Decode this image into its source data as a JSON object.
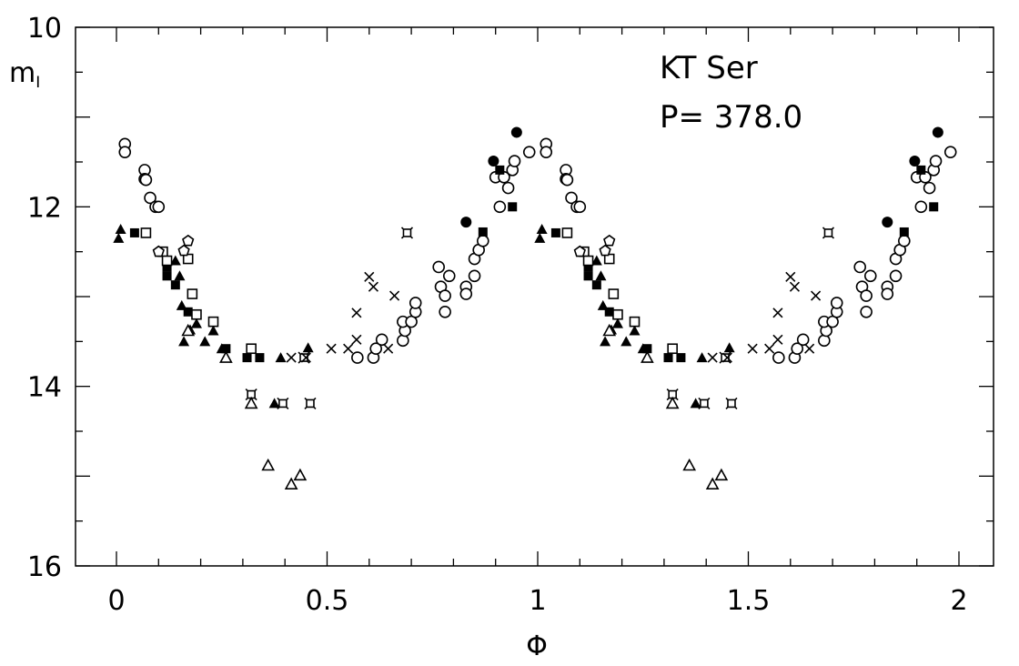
{
  "chart_data": {
    "type": "scatter",
    "title": "",
    "annotations": {
      "star": "KT Ser",
      "period": "P= 378.0"
    },
    "xlabel": "Φ",
    "ylabel": "m",
    "ylabel_subscript": "I",
    "xlim": [
      -0.1,
      2.1
    ],
    "ylim": [
      16,
      10
    ],
    "y_inverted": true,
    "x_ticks": [
      "0",
      "0.5",
      "1",
      "1.5",
      "2"
    ],
    "x_tick_values": [
      0,
      0.5,
      1,
      1.5,
      2
    ],
    "y_ticks": [
      "10",
      "12",
      "14",
      "16"
    ],
    "y_tick_values": [
      10,
      12,
      14,
      16
    ],
    "grid": false,
    "phase_repeated": true,
    "color": "#000000",
    "series": [
      {
        "marker": "open-circle",
        "points": [
          [
            0.02,
            11.3
          ],
          [
            0.02,
            11.39
          ],
          [
            0.067,
            11.59
          ],
          [
            0.067,
            11.69
          ],
          [
            0.07,
            11.7
          ],
          [
            0.08,
            11.9
          ],
          [
            0.093,
            12.0
          ],
          [
            0.1,
            12.0
          ],
          [
            0.572,
            13.68
          ],
          [
            0.61,
            13.68
          ],
          [
            0.616,
            13.58
          ],
          [
            0.63,
            13.48
          ],
          [
            0.68,
            13.49
          ],
          [
            0.685,
            13.38
          ],
          [
            0.68,
            13.28
          ],
          [
            0.7,
            13.28
          ],
          [
            0.71,
            13.17
          ],
          [
            0.71,
            13.07
          ],
          [
            0.765,
            12.67
          ],
          [
            0.79,
            12.77
          ],
          [
            0.77,
            12.89
          ],
          [
            0.78,
            12.99
          ],
          [
            0.78,
            13.17
          ],
          [
            0.83,
            12.89
          ],
          [
            0.83,
            12.97
          ],
          [
            0.85,
            12.77
          ],
          [
            0.85,
            12.58
          ],
          [
            0.86,
            12.48
          ],
          [
            0.87,
            12.38
          ],
          [
            0.91,
            12.0
          ],
          [
            0.93,
            11.79
          ],
          [
            0.9,
            11.67
          ],
          [
            0.92,
            11.67
          ],
          [
            0.94,
            11.59
          ],
          [
            0.945,
            11.49
          ],
          [
            0.98,
            11.39
          ]
        ]
      },
      {
        "marker": "filled-circle",
        "points": [
          [
            0.95,
            11.17
          ],
          [
            0.83,
            12.17
          ],
          [
            0.895,
            11.49
          ]
        ]
      },
      {
        "marker": "filled-square",
        "points": [
          [
            0.043,
            12.29
          ],
          [
            0.12,
            12.67
          ],
          [
            0.12,
            12.77
          ],
          [
            0.14,
            12.87
          ],
          [
            0.17,
            13.17
          ],
          [
            0.26,
            13.58
          ],
          [
            0.31,
            13.68
          ],
          [
            0.34,
            13.68
          ],
          [
            0.94,
            12.0
          ],
          [
            0.87,
            12.28
          ],
          [
            0.91,
            11.59
          ]
        ]
      },
      {
        "marker": "filled-triangle",
        "points": [
          [
            0.005,
            12.35
          ],
          [
            0.01,
            12.25
          ],
          [
            0.14,
            12.6
          ],
          [
            0.15,
            12.77
          ],
          [
            0.155,
            13.1
          ],
          [
            0.16,
            13.5
          ],
          [
            0.175,
            13.37
          ],
          [
            0.19,
            13.3
          ],
          [
            0.21,
            13.5
          ],
          [
            0.23,
            13.38
          ],
          [
            0.25,
            13.58
          ],
          [
            0.39,
            13.68
          ],
          [
            0.455,
            13.57
          ],
          [
            0.375,
            14.19
          ]
        ]
      },
      {
        "marker": "open-square",
        "points": [
          [
            0.07,
            12.29
          ],
          [
            0.11,
            12.5
          ],
          [
            0.12,
            12.6
          ],
          [
            0.17,
            12.58
          ],
          [
            0.18,
            12.97
          ],
          [
            0.19,
            13.2
          ],
          [
            0.23,
            13.28
          ],
          [
            0.32,
            13.58
          ]
        ]
      },
      {
        "marker": "open-triangle",
        "points": [
          [
            0.17,
            13.38
          ],
          [
            0.26,
            13.68
          ],
          [
            0.32,
            14.19
          ],
          [
            0.36,
            14.88
          ],
          [
            0.415,
            15.09
          ],
          [
            0.436,
            14.99
          ]
        ]
      },
      {
        "marker": "open-pentagon",
        "points": [
          [
            0.17,
            12.38
          ],
          [
            0.16,
            12.49
          ],
          [
            0.1,
            12.5
          ]
        ]
      },
      {
        "marker": "cross",
        "points": [
          [
            0.415,
            13.68
          ],
          [
            0.45,
            13.68
          ],
          [
            0.51,
            13.58
          ],
          [
            0.55,
            13.58
          ],
          [
            0.57,
            13.48
          ],
          [
            0.57,
            13.18
          ],
          [
            0.6,
            12.78
          ],
          [
            0.61,
            12.89
          ],
          [
            0.645,
            13.58
          ],
          [
            0.66,
            12.99
          ]
        ]
      },
      {
        "marker": "starred-square",
        "points": [
          [
            0.32,
            14.09
          ],
          [
            0.395,
            14.19
          ],
          [
            0.46,
            14.19
          ],
          [
            0.69,
            12.29
          ],
          [
            0.445,
            13.68
          ]
        ]
      }
    ]
  }
}
